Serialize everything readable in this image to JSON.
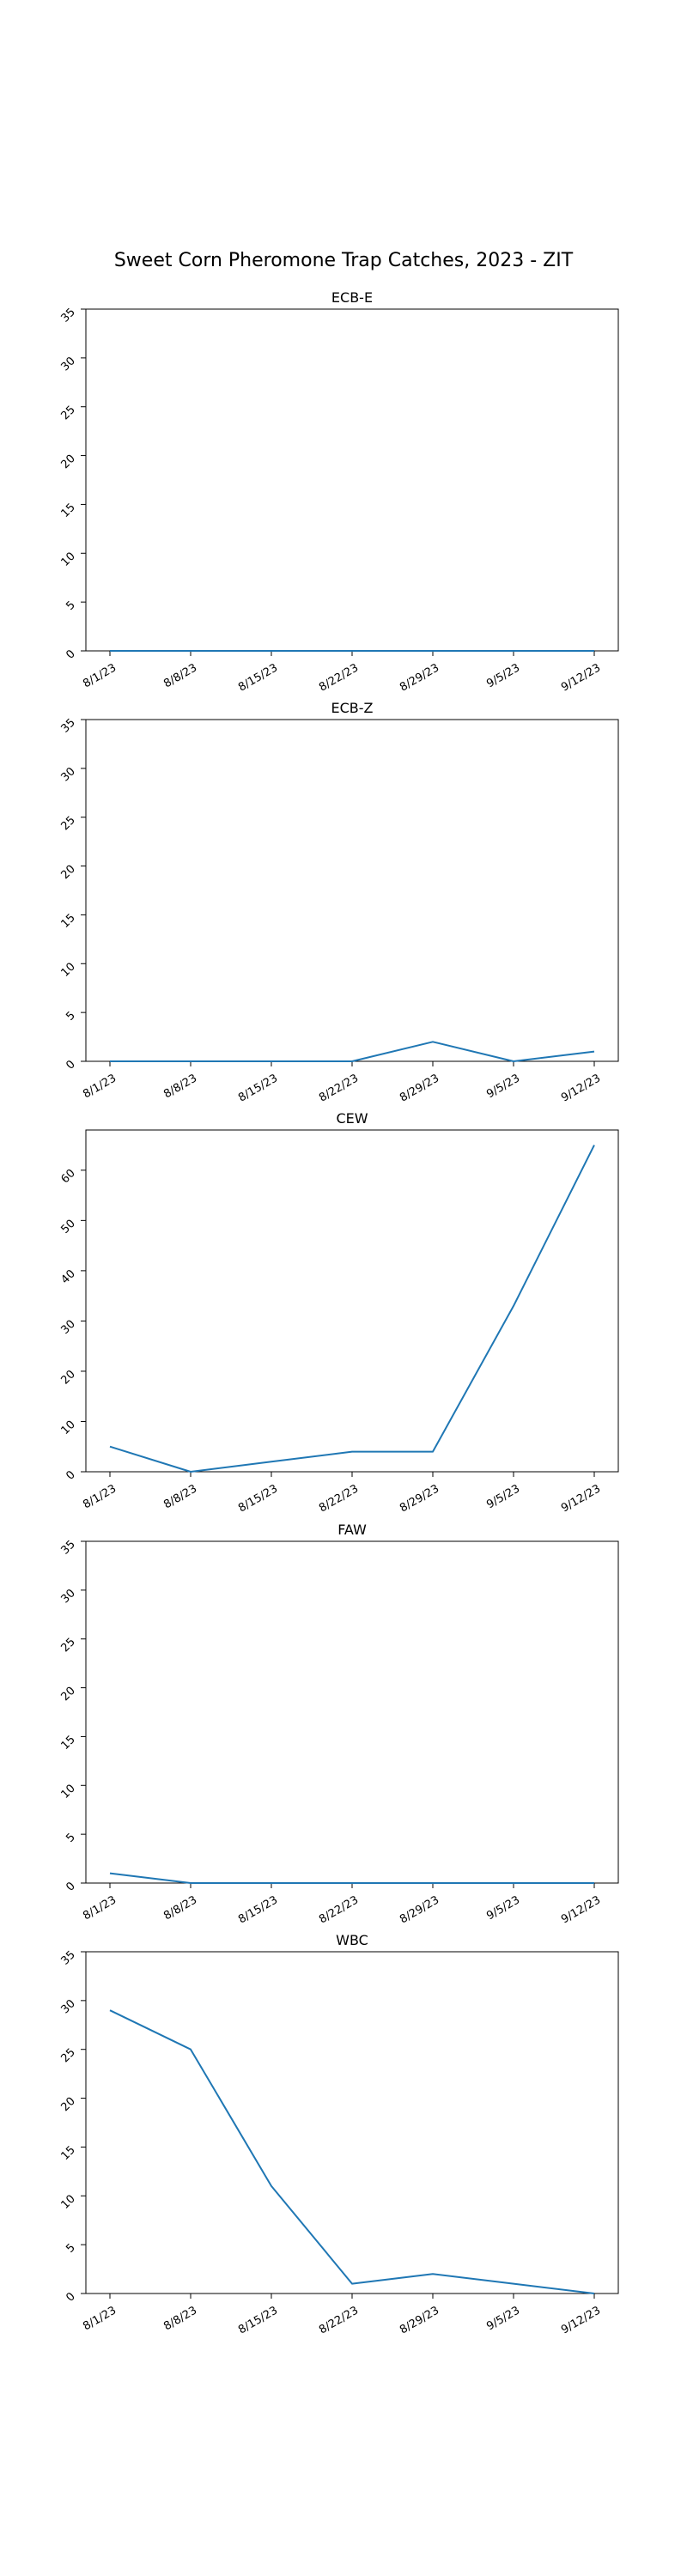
{
  "figure_title": "Sweet Corn Pheromone Trap Catches, 2023 - ZIT",
  "line_color": "#1f77b4",
  "chart_data": [
    {
      "type": "line",
      "title": "ECB-E",
      "categories": [
        "8/1/23",
        "8/8/23",
        "8/15/23",
        "8/22/23",
        "8/29/23",
        "9/5/23",
        "9/12/23"
      ],
      "values": [
        0,
        0,
        0,
        0,
        0,
        0,
        0
      ],
      "ylim": [
        0,
        35
      ],
      "yticks": [
        0,
        5,
        10,
        15,
        20,
        25,
        30,
        35
      ],
      "grid": false,
      "xlabel": "",
      "ylabel": ""
    },
    {
      "type": "line",
      "title": "ECB-Z",
      "categories": [
        "8/1/23",
        "8/8/23",
        "8/15/23",
        "8/22/23",
        "8/29/23",
        "9/5/23",
        "9/12/23"
      ],
      "values": [
        0,
        0,
        0,
        0,
        2,
        0,
        1
      ],
      "ylim": [
        0,
        35
      ],
      "yticks": [
        0,
        5,
        10,
        15,
        20,
        25,
        30,
        35
      ],
      "grid": false,
      "xlabel": "",
      "ylabel": ""
    },
    {
      "type": "line",
      "title": "CEW",
      "categories": [
        "8/1/23",
        "8/8/23",
        "8/15/23",
        "8/22/23",
        "8/29/23",
        "9/5/23",
        "9/12/23"
      ],
      "values": [
        5,
        0,
        2,
        4,
        4,
        33,
        65
      ],
      "ylim": [
        0,
        68
      ],
      "yticks": [
        0,
        10,
        20,
        30,
        40,
        50,
        60
      ],
      "grid": false,
      "xlabel": "",
      "ylabel": ""
    },
    {
      "type": "line",
      "title": "FAW",
      "categories": [
        "8/1/23",
        "8/8/23",
        "8/15/23",
        "8/22/23",
        "8/29/23",
        "9/5/23",
        "9/12/23"
      ],
      "values": [
        1,
        0,
        0,
        0,
        0,
        0,
        0
      ],
      "ylim": [
        0,
        35
      ],
      "yticks": [
        0,
        5,
        10,
        15,
        20,
        25,
        30,
        35
      ],
      "grid": false,
      "xlabel": "",
      "ylabel": ""
    },
    {
      "type": "line",
      "title": "WBC",
      "categories": [
        "8/1/23",
        "8/8/23",
        "8/15/23",
        "8/22/23",
        "8/29/23",
        "9/5/23",
        "9/12/23"
      ],
      "values": [
        29,
        25,
        11,
        1,
        2,
        1,
        0
      ],
      "ylim": [
        0,
        35
      ],
      "yticks": [
        0,
        5,
        10,
        15,
        20,
        25,
        30,
        35
      ],
      "grid": false,
      "xlabel": "",
      "ylabel": ""
    }
  ]
}
